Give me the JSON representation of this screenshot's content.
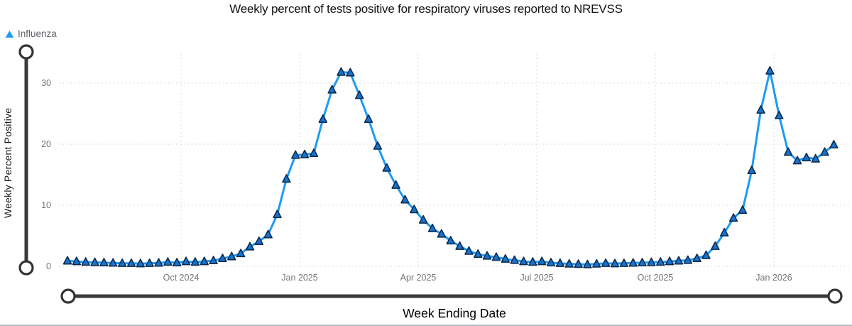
{
  "title": "Weekly percent of tests positive for respiratory viruses reported to NREVSS",
  "legend": {
    "items": [
      {
        "label": "Influenza",
        "marker": "triangle-up",
        "color": "#1f9bf0"
      }
    ]
  },
  "y_axis": {
    "title": "Weekly Percent Positive",
    "tick_labels": [
      "0",
      "10",
      "20",
      "30"
    ]
  },
  "x_axis": {
    "title": "Week Ending Date",
    "tick_labels": [
      "Oct 2024",
      "Jan 2025",
      "Apr 2025",
      "Jul 2025",
      "Oct 2025",
      "Jan 2026"
    ]
  },
  "chart_data": {
    "type": "line",
    "title": "Weekly percent of tests positive for respiratory viruses reported to NREVSS",
    "xlabel": "Week Ending Date",
    "ylabel": "Weekly Percent Positive",
    "x_tick_labels": [
      "Oct 2024",
      "Jan 2025",
      "Apr 2025",
      "Jul 2025",
      "Oct 2025",
      "Jan 2026"
    ],
    "y_ticks": [
      0,
      10,
      20,
      30
    ],
    "ylim": [
      0,
      34.5
    ],
    "grid": "dotted",
    "legend_position": "top-left",
    "x_unit": "week",
    "series": [
      {
        "name": "Influenza",
        "marker": "triangle-up",
        "line_color": "#1e9bf2",
        "marker_fill": "#1773cf",
        "marker_stroke": "#0e2b4d",
        "values": [
          0.9,
          0.8,
          0.7,
          0.65,
          0.6,
          0.55,
          0.5,
          0.5,
          0.45,
          0.5,
          0.55,
          0.7,
          0.6,
          0.8,
          0.7,
          0.8,
          0.95,
          1.3,
          1.6,
          2.1,
          3.2,
          4.1,
          5.2,
          8.5,
          14.3,
          18.2,
          18.3,
          18.5,
          24.1,
          28.9,
          31.8,
          31.7,
          28.0,
          24.1,
          19.7,
          16.1,
          13.3,
          10.9,
          9.3,
          7.6,
          6.2,
          5.3,
          4.2,
          3.3,
          2.5,
          2.0,
          1.7,
          1.5,
          1.2,
          1.0,
          0.8,
          0.7,
          0.8,
          0.6,
          0.5,
          0.4,
          0.35,
          0.3,
          0.4,
          0.5,
          0.45,
          0.5,
          0.55,
          0.6,
          0.65,
          0.7,
          0.8,
          0.9,
          1.0,
          1.3,
          1.8,
          3.3,
          5.5,
          7.9,
          9.2,
          15.7,
          25.6,
          32.0,
          24.7,
          18.7,
          17.3,
          17.8,
          17.6,
          18.7,
          19.9
        ]
      }
    ]
  }
}
